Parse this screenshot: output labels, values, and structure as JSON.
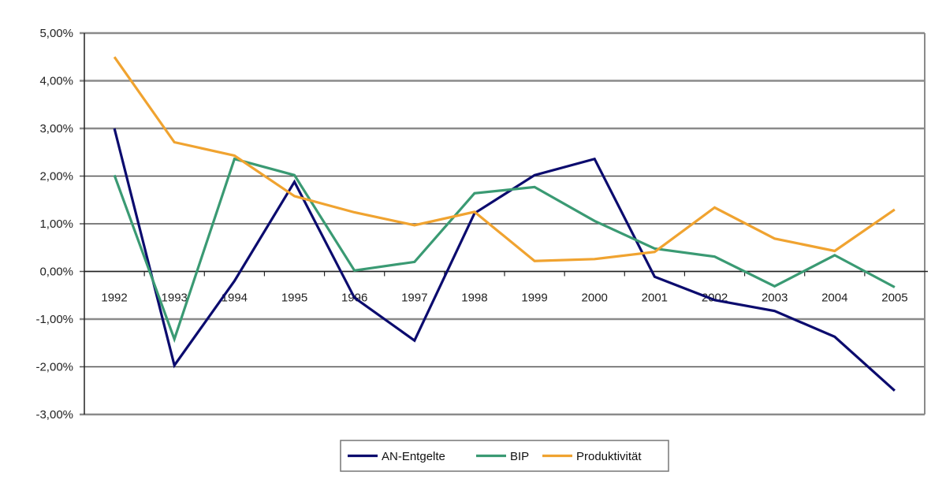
{
  "chart_data": {
    "type": "line",
    "title": "",
    "xlabel": "",
    "ylabel": "",
    "x": [
      "1992",
      "1993",
      "1994",
      "1995",
      "1996",
      "1997",
      "1998",
      "1999",
      "2000",
      "2001",
      "2002",
      "2003",
      "2004",
      "2005"
    ],
    "ylim": [
      -3,
      5
    ],
    "yticks": [
      5,
      4,
      3,
      2,
      1,
      0,
      -1,
      -2,
      -3
    ],
    "ytick_labels": [
      "5,00%",
      "4,00%",
      "3,00%",
      "2,00%",
      "1,00%",
      "0,00%",
      "-1,00%",
      "-2,00%",
      "-3,00%"
    ],
    "grid": true,
    "legend_position": "bottom-center",
    "series": [
      {
        "name": "AN-Entgelte",
        "color": "#0b0b6e",
        "values": [
          3.0,
          -1.97,
          -0.2,
          1.88,
          -0.55,
          -1.45,
          1.22,
          2.02,
          2.36,
          -0.11,
          -0.6,
          -0.83,
          -1.37,
          -2.5
        ]
      },
      {
        "name": "BIP",
        "color": "#3a9a73",
        "values": [
          2.02,
          -1.42,
          2.36,
          2.02,
          0.02,
          0.2,
          1.64,
          1.77,
          1.06,
          0.48,
          0.31,
          -0.31,
          0.34,
          -0.33
        ]
      },
      {
        "name": "Produktivität",
        "color": "#f0a330",
        "values": [
          4.5,
          2.71,
          2.43,
          1.58,
          1.24,
          0.97,
          1.25,
          0.22,
          0.26,
          0.41,
          1.34,
          0.69,
          0.43,
          1.3
        ]
      }
    ]
  }
}
